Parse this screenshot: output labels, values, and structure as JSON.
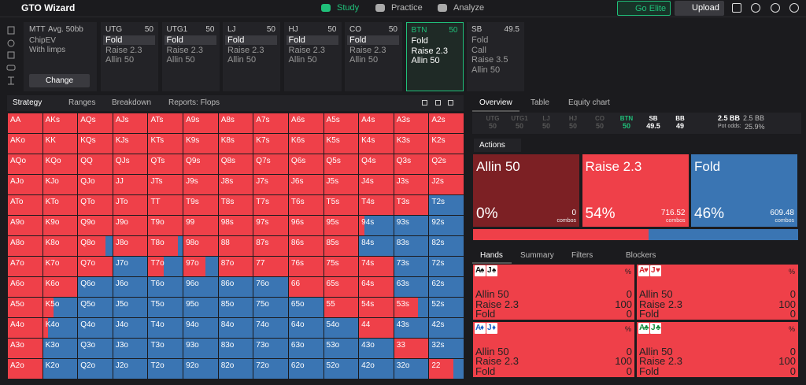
{
  "nav": {
    "logo": "GTO Wizard",
    "tabs": [
      "Study",
      "Practice",
      "Analyze"
    ],
    "elite": "Go Elite",
    "upload": "Upload"
  },
  "settings": {
    "format": "MTT",
    "stack": "Avg. 50bb",
    "options": [
      "ChipEV",
      "With limps"
    ],
    "button": "Change"
  },
  "positions": [
    {
      "name": "UTG",
      "stack": 50,
      "actions": [
        "Fold",
        "Raise 2.3",
        "Allin 50"
      ],
      "selected": 0
    },
    {
      "name": "UTG1",
      "stack": 50,
      "actions": [
        "Fold",
        "Raise 2.3",
        "Allin 50"
      ],
      "selected": 0
    },
    {
      "name": "LJ",
      "stack": 50,
      "actions": [
        "Fold",
        "Raise 2.3",
        "Allin 50"
      ],
      "selected": 0
    },
    {
      "name": "HJ",
      "stack": 50,
      "actions": [
        "Fold",
        "Raise 2.3",
        "Allin 50"
      ],
      "selected": 0
    },
    {
      "name": "CO",
      "stack": 50,
      "actions": [
        "Fold",
        "Raise 2.3",
        "Allin 50"
      ],
      "selected": 0
    },
    {
      "name": "BTN",
      "stack": 50,
      "actions": [
        "Fold",
        "Raise 2.3",
        "Allin 50"
      ],
      "active": true
    },
    {
      "name": "SB",
      "stack": 49.5,
      "actions": [
        "Fold",
        "Call",
        "Raise 3.5",
        "Allin 50"
      ]
    }
  ],
  "tabs": [
    "Strategy",
    "Ranges",
    "Breakdown",
    "Reports: Flops"
  ],
  "strategy": {
    "colors": {
      "raise": "#ef4049",
      "fold": "#3a75b3"
    },
    "hands": [
      [
        "AA",
        "AKs",
        "AQs",
        "AJs",
        "ATs",
        "A9s",
        "A8s",
        "A7s",
        "A6s",
        "A5s",
        "A4s",
        "A3s",
        "A2s"
      ],
      [
        "AKo",
        "KK",
        "KQs",
        "KJs",
        "KTs",
        "K9s",
        "K8s",
        "K7s",
        "K6s",
        "K5s",
        "K4s",
        "K3s",
        "K2s"
      ],
      [
        "AQo",
        "KQo",
        "QQ",
        "QJs",
        "QTs",
        "Q9s",
        "Q8s",
        "Q7s",
        "Q6s",
        "Q5s",
        "Q4s",
        "Q3s",
        "Q2s"
      ],
      [
        "AJo",
        "KJo",
        "QJo",
        "JJ",
        "JTs",
        "J9s",
        "J8s",
        "J7s",
        "J6s",
        "J5s",
        "J4s",
        "J3s",
        "J2s"
      ],
      [
        "ATo",
        "KTo",
        "QTo",
        "JTo",
        "TT",
        "T9s",
        "T8s",
        "T7s",
        "T6s",
        "T5s",
        "T4s",
        "T3s",
        "T2s"
      ],
      [
        "A9o",
        "K9o",
        "Q9o",
        "J9o",
        "T9o",
        "99",
        "98s",
        "97s",
        "96s",
        "95s",
        "94s",
        "93s",
        "92s"
      ],
      [
        "A8o",
        "K8o",
        "Q8o",
        "J8o",
        "T8o",
        "98o",
        "88",
        "87s",
        "86s",
        "85s",
        "84s",
        "83s",
        "82s"
      ],
      [
        "A7o",
        "K7o",
        "Q7o",
        "J7o",
        "T7o",
        "97o",
        "87o",
        "77",
        "76s",
        "75s",
        "74s",
        "73s",
        "72s"
      ],
      [
        "A6o",
        "K6o",
        "Q6o",
        "J6o",
        "T6o",
        "96o",
        "86o",
        "76o",
        "66",
        "65s",
        "64s",
        "63s",
        "62s"
      ],
      [
        "A5o",
        "K5o",
        "Q5o",
        "J5o",
        "T5o",
        "95o",
        "85o",
        "75o",
        "65o",
        "55",
        "54s",
        "53s",
        "52s"
      ],
      [
        "A4o",
        "K4o",
        "Q4o",
        "J4o",
        "T4o",
        "94o",
        "84o",
        "74o",
        "64o",
        "54o",
        "44",
        "43s",
        "42s"
      ],
      [
        "A3o",
        "K3o",
        "Q3o",
        "J3o",
        "T3o",
        "93o",
        "83o",
        "73o",
        "63o",
        "53o",
        "43o",
        "33",
        "32s"
      ],
      [
        "A2o",
        "K2o",
        "Q2o",
        "J2o",
        "T2o",
        "92o",
        "82o",
        "72o",
        "62o",
        "52o",
        "42o",
        "32o",
        "22"
      ]
    ],
    "raise": [
      [
        100,
        100,
        100,
        100,
        100,
        100,
        100,
        100,
        100,
        100,
        100,
        100,
        100
      ],
      [
        100,
        100,
        100,
        100,
        100,
        100,
        100,
        100,
        100,
        100,
        100,
        100,
        100
      ],
      [
        100,
        100,
        100,
        100,
        100,
        100,
        100,
        100,
        100,
        100,
        100,
        100,
        100
      ],
      [
        100,
        100,
        100,
        100,
        100,
        100,
        100,
        100,
        100,
        100,
        100,
        100,
        100
      ],
      [
        100,
        100,
        100,
        100,
        100,
        100,
        100,
        100,
        100,
        100,
        100,
        100,
        0
      ],
      [
        100,
        100,
        100,
        100,
        100,
        100,
        100,
        100,
        100,
        100,
        15,
        0,
        0
      ],
      [
        100,
        100,
        80,
        100,
        85,
        100,
        100,
        100,
        100,
        100,
        0,
        0,
        0
      ],
      [
        100,
        100,
        100,
        0,
        45,
        65,
        100,
        100,
        100,
        100,
        100,
        0,
        0
      ],
      [
        100,
        100,
        0,
        0,
        0,
        0,
        0,
        0,
        100,
        100,
        100,
        0,
        0
      ],
      [
        100,
        30,
        0,
        0,
        0,
        0,
        0,
        0,
        0,
        100,
        100,
        70,
        0
      ],
      [
        100,
        15,
        0,
        0,
        0,
        0,
        0,
        0,
        0,
        0,
        100,
        0,
        0
      ],
      [
        100,
        0,
        0,
        0,
        0,
        0,
        0,
        0,
        0,
        0,
        0,
        100,
        0
      ],
      [
        100,
        0,
        0,
        0,
        0,
        0,
        0,
        0,
        0,
        0,
        0,
        0,
        70
      ]
    ]
  },
  "overview": {
    "tabs": [
      "Overview",
      "Table",
      "Equity chart"
    ],
    "strip": [
      {
        "name": "UTG",
        "stack": 50
      },
      {
        "name": "UTG1",
        "stack": 50
      },
      {
        "name": "LJ",
        "stack": 50
      },
      {
        "name": "HJ",
        "stack": 50
      },
      {
        "name": "CO",
        "stack": 50
      },
      {
        "name": "BTN",
        "stack": 50
      },
      {
        "name": "SB",
        "stack": 49.5
      },
      {
        "name": "BB",
        "stack": 49
      }
    ],
    "active": 5,
    "pot": "2.5 BB",
    "pot_total": "2.5 BB",
    "pot_odds_label": "Pot odds:",
    "pot_odds": "25.9%",
    "actions_menu": "Actions",
    "combos_label": "combos",
    "actions": [
      {
        "name": "Allin 50",
        "percent": 0,
        "percent_label": "0%",
        "combos": 0,
        "color": "#7c2024"
      },
      {
        "name": "Raise 2.3",
        "percent": 54,
        "percent_label": "54%",
        "combos": 716.52,
        "color": "#ef4049"
      },
      {
        "name": "Fold",
        "percent": 46,
        "percent_label": "46%",
        "combos": 609.48,
        "color": "#3a75b3"
      }
    ]
  },
  "hand_tabs": [
    "Hands",
    "Summary",
    "Filters",
    "Blockers"
  ],
  "suit_colors": {
    "♠": "#111111",
    "♥": "#d8262f",
    "♦": "#1d5fc9",
    "♣": "#138a3a"
  },
  "hand_cards": [
    {
      "cards": [
        {
          "rank": "A",
          "suit": "♠"
        },
        {
          "rank": "J",
          "suit": "♠"
        }
      ],
      "pct": "%",
      "rows": [
        {
          "name": "Allin 50",
          "value": 0
        },
        {
          "name": "Raise 2.3",
          "value": 100
        },
        {
          "name": "Fold",
          "value": 0
        }
      ]
    },
    {
      "cards": [
        {
          "rank": "A",
          "suit": "♥"
        },
        {
          "rank": "J",
          "suit": "♥"
        }
      ],
      "pct": "%",
      "rows": [
        {
          "name": "Allin 50",
          "value": 0
        },
        {
          "name": "Raise 2.3",
          "value": 100
        },
        {
          "name": "Fold",
          "value": 0
        }
      ]
    },
    {
      "cards": [
        {
          "rank": "A",
          "suit": "♦"
        },
        {
          "rank": "J",
          "suit": "♦"
        }
      ],
      "pct": "%",
      "rows": [
        {
          "name": "Allin 50",
          "value": 0
        },
        {
          "name": "Raise 2.3",
          "value": 100
        },
        {
          "name": "Fold",
          "value": 0
        }
      ]
    },
    {
      "cards": [
        {
          "rank": "A",
          "suit": "♣"
        },
        {
          "rank": "J",
          "suit": "♣"
        }
      ],
      "pct": "%",
      "rows": [
        {
          "name": "Allin 50",
          "value": 0
        },
        {
          "name": "Raise 2.3",
          "value": 100
        },
        {
          "name": "Fold",
          "value": 0
        }
      ]
    }
  ]
}
